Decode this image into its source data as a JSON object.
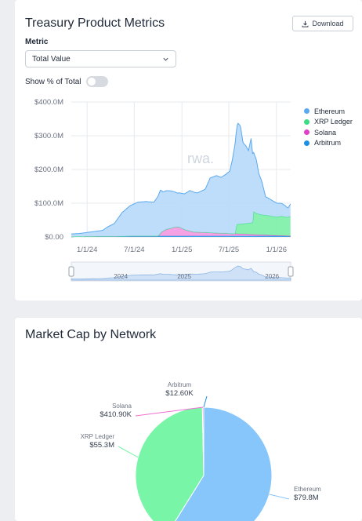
{
  "treasury": {
    "title": "Treasury Product Metrics",
    "download_label": "Download",
    "metric_label": "Metric",
    "metric_value": "Total Value",
    "toggle_label": "Show % of Total",
    "toggle_on": false,
    "watermark": "rwa.",
    "legend": [
      {
        "name": "Ethereum",
        "color": "#5aa9f0"
      },
      {
        "name": "XRP Ledger",
        "color": "#3ddc84"
      },
      {
        "name": "Solana",
        "color": "#e040c8"
      },
      {
        "name": "Arbitrum",
        "color": "#1d8fe1"
      }
    ]
  },
  "market": {
    "title": "Market Cap by Network"
  },
  "chart_data": [
    {
      "type": "area",
      "title": "",
      "xlabel": "",
      "ylabel": "",
      "stacked": true,
      "grid": true,
      "legend_position": "right",
      "x_ticks": [
        "1/1/24",
        "7/1/24",
        "1/1/25",
        "7/1/25",
        "1/1/26"
      ],
      "y_ticks": [
        "$0.00",
        "$100.0M",
        "$200.0M",
        "$300.0M",
        "$400.0M"
      ],
      "ylim": [
        0,
        400
      ],
      "y_unit": "$M",
      "navigator_labels": [
        "2024",
        "2025",
        "2026"
      ],
      "series": [
        {
          "name": "Ethereum",
          "color": "#5aa9f0",
          "x": [
            "2023-11-01",
            "2023-12-01",
            "2024-01-01",
            "2024-02-01",
            "2024-03-01",
            "2024-03-20",
            "2024-04-15",
            "2024-05-15",
            "2024-06-15",
            "2024-07-15",
            "2024-08-15",
            "2024-09-15",
            "2024-10-01",
            "2024-10-10",
            "2024-10-20",
            "2024-11-15",
            "2024-12-15",
            "2025-01-10",
            "2025-02-01",
            "2025-03-01",
            "2025-04-01",
            "2025-04-20",
            "2025-05-15",
            "2025-06-01",
            "2025-06-20",
            "2025-07-05",
            "2025-07-15",
            "2025-07-25",
            "2025-08-05",
            "2025-08-15",
            "2025-08-25",
            "2025-09-05",
            "2025-09-15",
            "2025-09-25",
            "2025-10-05",
            "2025-10-15",
            "2025-10-25",
            "2025-11-05",
            "2025-11-20",
            "2025-12-05",
            "2025-12-20",
            "2026-01-05",
            "2026-01-20",
            "2026-02-05",
            "2026-02-15",
            "2026-02-25"
          ],
          "values": [
            8,
            9,
            12,
            15,
            18,
            28,
            38,
            70,
            90,
            100,
            102,
            100,
            118,
            128,
            116,
            112,
            100,
            105,
            120,
            116,
            128,
            162,
            170,
            165,
            175,
            185,
            220,
            265,
            300,
            290,
            240,
            230,
            215,
            250,
            175,
            160,
            120,
            100,
            55,
            50,
            45,
            40,
            38,
            33,
            27,
            38
          ]
        },
        {
          "name": "XRP Ledger",
          "color": "#3ddc84",
          "x": [
            "2023-11-01",
            "2025-07-25",
            "2025-08-01",
            "2025-09-15",
            "2025-10-01",
            "2025-10-05",
            "2025-10-15",
            "2025-11-01",
            "2025-12-01",
            "2026-01-01",
            "2026-01-20",
            "2026-02-10",
            "2026-02-25"
          ],
          "values": [
            0,
            0,
            28,
            33,
            35,
            68,
            63,
            60,
            58,
            55,
            58,
            55,
            58
          ]
        },
        {
          "name": "Solana",
          "color": "#e040c8",
          "x": [
            "2023-11-01",
            "2024-10-01",
            "2024-10-15",
            "2024-11-01",
            "2024-11-15",
            "2024-12-01",
            "2024-12-20",
            "2025-01-15",
            "2025-02-15",
            "2025-03-15",
            "2025-04-15",
            "2025-05-15",
            "2025-06-15",
            "2025-07-15",
            "2025-08-15",
            "2025-09-15",
            "2025-10-15",
            "2025-11-15",
            "2025-12-15",
            "2026-01-15",
            "2026-02-25"
          ],
          "values": [
            0,
            0,
            12,
            20,
            22,
            26,
            27,
            18,
            12,
            11,
            10,
            9,
            8,
            7,
            6,
            5,
            4,
            3,
            2,
            1,
            0
          ]
        },
        {
          "name": "Arbitrum",
          "color": "#1d8fe1",
          "x": [
            "2023-11-01",
            "2024-05-01",
            "2024-07-01",
            "2025-01-01",
            "2025-07-01",
            "2026-01-01",
            "2026-02-25"
          ],
          "values": [
            1,
            2,
            3,
            3,
            3,
            3,
            3
          ]
        }
      ]
    },
    {
      "type": "pie",
      "title": "",
      "slices": [
        {
          "label": "Ethereum",
          "value": 79.8,
          "display": "$79.8M",
          "color": "#87c6fb"
        },
        {
          "label": "XRP Ledger",
          "value": 55.3,
          "display": "$55.3M",
          "color": "#78f5a7"
        },
        {
          "label": "Solana",
          "value": 0.4109,
          "display": "$410.90K",
          "color": "#f06fd2"
        },
        {
          "label": "Arbitrum",
          "value": 0.0126,
          "display": "$12.60K",
          "color": "#1f8fe3"
        }
      ]
    }
  ]
}
